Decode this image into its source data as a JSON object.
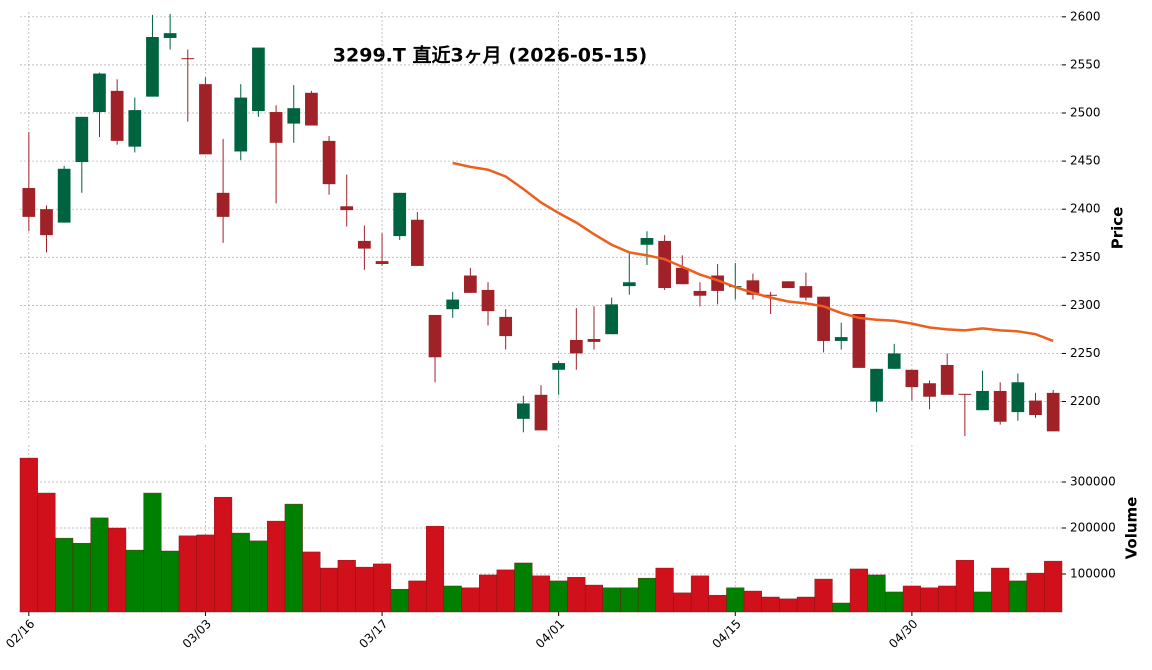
{
  "chart_data": {
    "type": "candlestick",
    "title": "3299.T  直近3ヶ月  (2026-05-15)",
    "categories": [
      "02/16",
      null,
      null,
      null,
      null,
      null,
      null,
      null,
      null,
      null,
      "03/03",
      null,
      null,
      null,
      null,
      null,
      null,
      null,
      null,
      null,
      "03/17",
      null,
      null,
      null,
      null,
      null,
      null,
      null,
      null,
      null,
      "04/01",
      null,
      null,
      null,
      null,
      null,
      null,
      null,
      null,
      null,
      "04/15",
      null,
      null,
      null,
      null,
      null,
      null,
      null,
      null,
      null,
      "04/30",
      null,
      null,
      null,
      null,
      null,
      null,
      null,
      null
    ],
    "open": [
      2422,
      2400,
      2386,
      2449,
      2501,
      2523,
      2465,
      2517,
      2578,
      2557,
      2530,
      2417,
      2460,
      2502,
      2501,
      2489,
      2521,
      2471,
      2403,
      2367,
      2346,
      2372,
      2389,
      2290,
      2296,
      2331,
      2316,
      2288,
      2182,
      2207,
      2233,
      2264,
      2265,
      2270,
      2320,
      2363,
      2367,
      2339,
      2315,
      2331,
      2319,
      2326,
      2311,
      2325,
      2320,
      2309,
      2263,
      2291,
      2200,
      2234,
      2233,
      2219,
      2238,
      2208,
      2191,
      2211,
      2189,
      2201,
      2209
    ],
    "high": [
      2480,
      2404,
      2445,
      2496,
      2542,
      2535,
      2516,
      2602,
      2603,
      2566,
      2537,
      2473,
      2530,
      2568,
      2508,
      2529,
      2523,
      2476,
      2436,
      2383,
      2375,
      2417,
      2397,
      2290,
      2314,
      2339,
      2324,
      2296,
      2206,
      2217,
      2242,
      2297,
      2299,
      2308,
      2356,
      2377,
      2373,
      2352,
      2324,
      2343,
      2344,
      2333,
      2314,
      2325,
      2334,
      2309,
      2282,
      2291,
      2234,
      2260,
      2233,
      2222,
      2250,
      2208,
      2232,
      2220,
      2229,
      2209,
      2212
    ],
    "low": [
      2377,
      2355,
      2386,
      2417,
      2475,
      2467,
      2459,
      2517,
      2566,
      2491,
      2457,
      2365,
      2451,
      2496,
      2406,
      2469,
      2487,
      2415,
      2382,
      2337,
      2341,
      2368,
      2341,
      2220,
      2287,
      2313,
      2279,
      2254,
      2168,
      2170,
      2207,
      2233,
      2254,
      2270,
      2311,
      2342,
      2316,
      2322,
      2299,
      2301,
      2306,
      2306,
      2291,
      2318,
      2305,
      2251,
      2254,
      2235,
      2189,
      2234,
      2201,
      2192,
      2207,
      2164,
      2191,
      2176,
      2180,
      2183,
      2169
    ],
    "close": [
      2392,
      2373,
      2442,
      2496,
      2541,
      2471,
      2503,
      2579,
      2583,
      2556,
      2457,
      2392,
      2516,
      2568,
      2469,
      2505,
      2487,
      2426,
      2399,
      2359,
      2343,
      2417,
      2341,
      2246,
      2306,
      2313,
      2294,
      2268,
      2198,
      2170,
      2240,
      2250,
      2262,
      2301,
      2324,
      2370,
      2318,
      2322,
      2310,
      2315,
      2320,
      2311,
      2310,
      2318,
      2308,
      2263,
      2267,
      2235,
      2234,
      2250,
      2215,
      2205,
      2207,
      2207,
      2211,
      2179,
      2220,
      2186,
      2169
    ],
    "up_color": "#006340",
    "down_color": "#a02128",
    "ma": {
      "color": "#ec5f1c",
      "values": [
        null,
        null,
        null,
        null,
        null,
        null,
        null,
        null,
        null,
        null,
        null,
        null,
        null,
        null,
        null,
        null,
        null,
        null,
        null,
        null,
        null,
        null,
        null,
        null,
        2448,
        2444,
        2441,
        2434,
        2421,
        2407,
        2396,
        2386,
        2374,
        2363,
        2355,
        2352,
        2348,
        2340,
        2332,
        2326,
        2319,
        2313,
        2308,
        2304,
        2302,
        2299,
        2292,
        2287,
        2285,
        2284,
        2281,
        2277,
        2275,
        2274,
        2276,
        2274,
        2273,
        2270,
        2263
      ]
    },
    "ylabel": "Price",
    "ylim": [
      2160,
      2605
    ],
    "yticks": [
      2200,
      2250,
      2300,
      2350,
      2400,
      2450,
      2500,
      2550,
      2600
    ],
    "grid": true,
    "volume": {
      "label": "Volume",
      "values": [
        352000,
        276000,
        178000,
        167000,
        222000,
        200000,
        152000,
        276000,
        150000,
        183000,
        185000,
        267000,
        189000,
        172000,
        215000,
        252000,
        148000,
        113000,
        130000,
        115000,
        122000,
        67000,
        85000,
        204000,
        74000,
        70000,
        98000,
        109000,
        124000,
        96000,
        85000,
        93000,
        76000,
        70000,
        70000,
        91000,
        113000,
        59000,
        96000,
        54000,
        70000,
        63000,
        50000,
        46000,
        50000,
        89000,
        37000,
        111000,
        98000,
        61000,
        74000,
        70000,
        74000,
        130000,
        61000,
        113000,
        85000,
        102000,
        128000
      ],
      "up_color": "#008000",
      "down_color": "#d0111c",
      "ylim": [
        17400,
        380400
      ],
      "yticks": [
        100000,
        200000,
        300000
      ]
    }
  }
}
